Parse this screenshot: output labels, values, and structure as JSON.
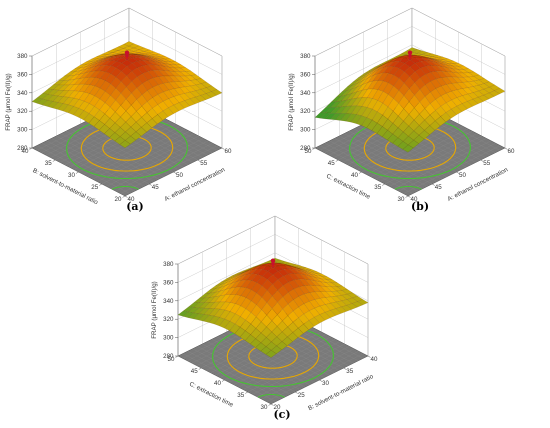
{
  "colors": {
    "high": "#c62a0a",
    "mid": "#f0b000",
    "low": "#3f9a2a",
    "floor": "#7a7a7a",
    "contour_outer": "#46c431",
    "contour_inner": "#e8a800",
    "point": "#c8102e"
  },
  "chart_data": [
    {
      "type": "surface3d",
      "panel_label": "(a)",
      "zlabel": "FRAP (μmol Fe(II)/g)",
      "zticks": [
        "280",
        "300",
        "320",
        "340",
        "360",
        "380"
      ],
      "zlim": [
        280,
        380
      ],
      "x_axis": {
        "label": "A: ethanol concentration",
        "ticks": [
          "40",
          "45",
          "50",
          "55",
          "60"
        ],
        "range": [
          40,
          60
        ]
      },
      "y_axis": {
        "label": "B: solvent-to-material ratio",
        "ticks": [
          "20",
          "25",
          "30",
          "35",
          "40"
        ],
        "range": [
          20,
          40
        ]
      },
      "surface": {
        "peak_value": 376,
        "corner_values": [
          330,
          338,
          328,
          342
        ],
        "center_x": 50,
        "center_y": 30
      },
      "design_point": {
        "x": 50,
        "y": 30,
        "z": 378
      }
    },
    {
      "type": "surface3d",
      "panel_label": "(b)",
      "zlabel": "FRAP (μmol Fe(II)/g)",
      "zticks": [
        "280",
        "300",
        "320",
        "340",
        "360",
        "380"
      ],
      "zlim": [
        280,
        380
      ],
      "x_axis": {
        "label": "A: ethanol concentration",
        "ticks": [
          "40",
          "45",
          "50",
          "55",
          "60"
        ],
        "range": [
          40,
          60
        ]
      },
      "y_axis": {
        "label": "C: extraction time",
        "ticks": [
          "30",
          "35",
          "40",
          "45",
          "50"
        ],
        "range": [
          30,
          50
        ]
      },
      "surface": {
        "peak_value": 376,
        "corner_values": [
          325,
          340,
          310,
          335
        ],
        "center_x": 50,
        "center_y": 40
      },
      "design_point": {
        "x": 50,
        "y": 40,
        "z": 378
      }
    },
    {
      "type": "surface3d",
      "panel_label": "(c)",
      "zlabel": "FRAP (μmol Fe(II)/g)",
      "zticks": [
        "280",
        "300",
        "320",
        "340",
        "360",
        "380"
      ],
      "zlim": [
        280,
        380
      ],
      "x_axis": {
        "label": "B: solvent-to-material ratio",
        "ticks": [
          "20",
          "25",
          "30",
          "35",
          "40"
        ],
        "range": [
          20,
          40
        ]
      },
      "y_axis": {
        "label": "C: extraction time",
        "ticks": [
          "30",
          "35",
          "40",
          "45",
          "50"
        ],
        "range": [
          30,
          50
        ]
      },
      "surface": {
        "peak_value": 376,
        "corner_values": [
          328,
          336,
          322,
          332
        ],
        "center_x": 30,
        "center_y": 40
      },
      "design_point": {
        "x": 30,
        "y": 40,
        "z": 378
      }
    }
  ]
}
